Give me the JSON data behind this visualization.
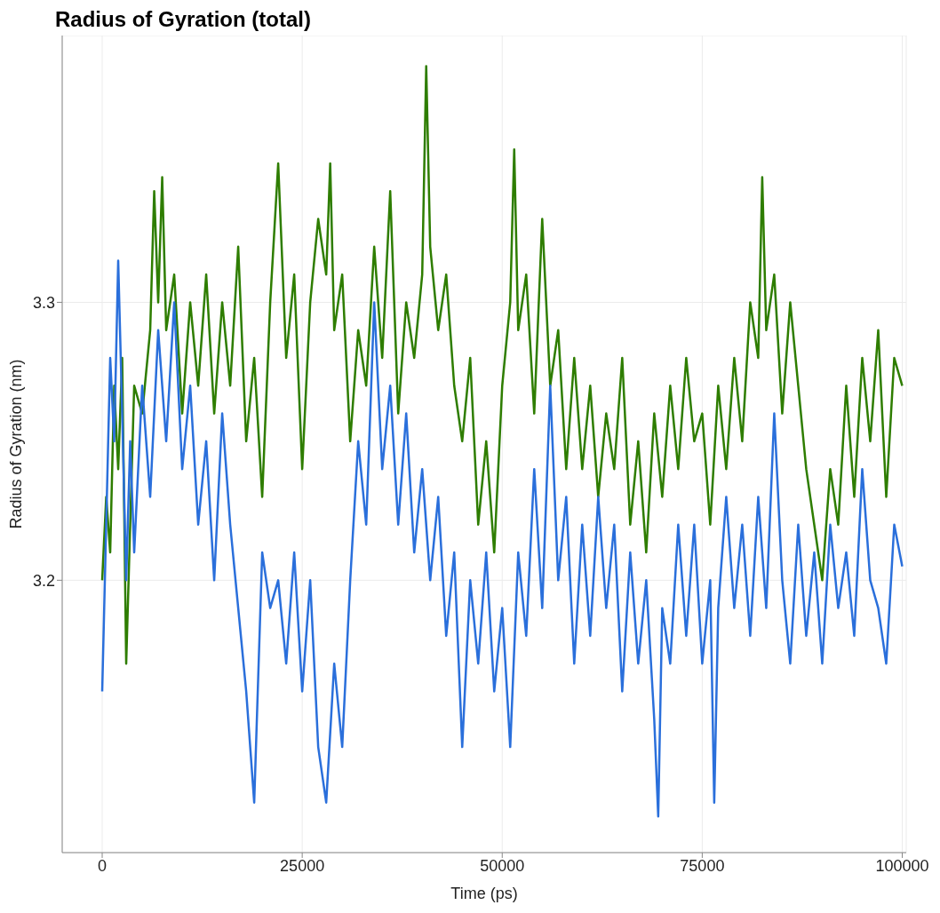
{
  "chart_data": {
    "type": "line",
    "title": "Radius of Gyration (total)",
    "xlabel": "Time (ps)",
    "ylabel": "Radius of Gyration (nm)",
    "xlim": [
      -5000,
      100500
    ],
    "xticks": [
      0,
      25000,
      50000,
      75000,
      100000
    ],
    "ylim": [
      3.102,
      3.396
    ],
    "yticks": [
      3.2,
      3.3
    ],
    "grid": true,
    "marker": "none",
    "line_style": "solid",
    "series": [
      {
        "color": "#2e7d00",
        "x": [
          0,
          500,
          1000,
          1500,
          2000,
          2500,
          3000,
          3500,
          4000,
          5000,
          6000,
          6500,
          7000,
          7500,
          8000,
          9000,
          10000,
          11000,
          12000,
          13000,
          14000,
          15000,
          16000,
          17000,
          18000,
          19000,
          20000,
          21000,
          22000,
          23000,
          24000,
          25000,
          26000,
          27000,
          28000,
          28500,
          29000,
          30000,
          31000,
          32000,
          33000,
          34000,
          35000,
          36000,
          37000,
          38000,
          39000,
          40000,
          40500,
          41000,
          42000,
          43000,
          44000,
          45000,
          46000,
          47000,
          48000,
          49000,
          50000,
          51000,
          51500,
          52000,
          53000,
          54000,
          55000,
          56000,
          57000,
          58000,
          59000,
          60000,
          61000,
          62000,
          63000,
          64000,
          65000,
          66000,
          67000,
          68000,
          69000,
          70000,
          71000,
          72000,
          73000,
          74000,
          75000,
          76000,
          77000,
          78000,
          79000,
          80000,
          81000,
          82000,
          82500,
          83000,
          84000,
          85000,
          86000,
          87000,
          88000,
          89000,
          90000,
          91000,
          92000,
          93000,
          94000,
          95000,
          96000,
          97000,
          98000,
          99000,
          100000
        ],
        "values": [
          3.2,
          3.23,
          3.21,
          3.27,
          3.24,
          3.28,
          3.17,
          3.22,
          3.27,
          3.26,
          3.29,
          3.34,
          3.3,
          3.345,
          3.29,
          3.31,
          3.26,
          3.3,
          3.27,
          3.31,
          3.26,
          3.3,
          3.27,
          3.32,
          3.25,
          3.28,
          3.23,
          3.3,
          3.35,
          3.28,
          3.31,
          3.24,
          3.3,
          3.33,
          3.31,
          3.35,
          3.29,
          3.31,
          3.25,
          3.29,
          3.27,
          3.32,
          3.28,
          3.34,
          3.26,
          3.3,
          3.28,
          3.31,
          3.385,
          3.32,
          3.29,
          3.31,
          3.27,
          3.25,
          3.28,
          3.22,
          3.25,
          3.21,
          3.27,
          3.3,
          3.355,
          3.29,
          3.31,
          3.26,
          3.33,
          3.27,
          3.29,
          3.24,
          3.28,
          3.24,
          3.27,
          3.23,
          3.26,
          3.24,
          3.28,
          3.22,
          3.25,
          3.21,
          3.26,
          3.23,
          3.27,
          3.24,
          3.28,
          3.25,
          3.26,
          3.22,
          3.27,
          3.24,
          3.28,
          3.25,
          3.3,
          3.28,
          3.345,
          3.29,
          3.31,
          3.26,
          3.3,
          3.27,
          3.24,
          3.22,
          3.2,
          3.24,
          3.22,
          3.27,
          3.23,
          3.28,
          3.25,
          3.29,
          3.23,
          3.28,
          3.27
        ]
      },
      {
        "color": "#2a6fdb",
        "x": [
          0,
          500,
          1000,
          1500,
          2000,
          2500,
          3000,
          3500,
          4000,
          5000,
          6000,
          7000,
          8000,
          9000,
          10000,
          11000,
          12000,
          13000,
          14000,
          15000,
          16000,
          17000,
          18000,
          19000,
          20000,
          21000,
          22000,
          23000,
          24000,
          25000,
          26000,
          27000,
          28000,
          29000,
          30000,
          31000,
          32000,
          33000,
          34000,
          35000,
          36000,
          37000,
          38000,
          39000,
          40000,
          41000,
          42000,
          43000,
          44000,
          45000,
          46000,
          47000,
          48000,
          49000,
          50000,
          51000,
          52000,
          53000,
          54000,
          55000,
          56000,
          57000,
          58000,
          59000,
          60000,
          61000,
          62000,
          63000,
          64000,
          65000,
          66000,
          67000,
          68000,
          69000,
          69500,
          70000,
          71000,
          72000,
          73000,
          74000,
          75000,
          76000,
          76500,
          77000,
          78000,
          79000,
          80000,
          81000,
          82000,
          83000,
          84000,
          85000,
          86000,
          87000,
          88000,
          89000,
          90000,
          91000,
          92000,
          93000,
          94000,
          95000,
          96000,
          97000,
          98000,
          99000,
          100000
        ],
        "values": [
          3.16,
          3.22,
          3.28,
          3.25,
          3.315,
          3.26,
          3.2,
          3.25,
          3.21,
          3.27,
          3.23,
          3.29,
          3.25,
          3.3,
          3.24,
          3.27,
          3.22,
          3.25,
          3.2,
          3.26,
          3.22,
          3.19,
          3.16,
          3.12,
          3.21,
          3.19,
          3.2,
          3.17,
          3.21,
          3.16,
          3.2,
          3.14,
          3.12,
          3.17,
          3.14,
          3.2,
          3.25,
          3.22,
          3.3,
          3.24,
          3.27,
          3.22,
          3.26,
          3.21,
          3.24,
          3.2,
          3.23,
          3.18,
          3.21,
          3.14,
          3.2,
          3.17,
          3.21,
          3.16,
          3.19,
          3.14,
          3.21,
          3.18,
          3.24,
          3.19,
          3.27,
          3.2,
          3.23,
          3.17,
          3.22,
          3.18,
          3.23,
          3.19,
          3.22,
          3.16,
          3.21,
          3.17,
          3.2,
          3.15,
          3.115,
          3.19,
          3.17,
          3.22,
          3.18,
          3.22,
          3.17,
          3.2,
          3.12,
          3.19,
          3.23,
          3.19,
          3.22,
          3.18,
          3.23,
          3.19,
          3.26,
          3.2,
          3.17,
          3.22,
          3.18,
          3.21,
          3.17,
          3.22,
          3.19,
          3.21,
          3.18,
          3.24,
          3.2,
          3.19,
          3.17,
          3.22,
          3.205
        ]
      }
    ]
  }
}
